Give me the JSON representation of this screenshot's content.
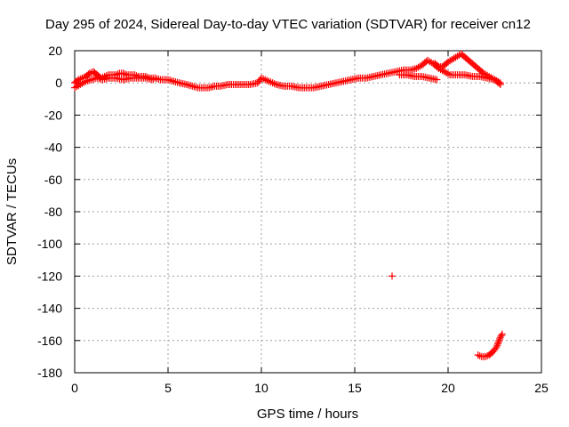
{
  "chart_data": {
    "type": "scatter",
    "title": "Day 295 of 2024, Sidereal Day-to-day VTEC variation (SDTVAR) for receiver cn12",
    "xlabel": "GPS time / hours",
    "ylabel": "SDTVAR / TECUs",
    "xlim": [
      0,
      25
    ],
    "ylim": [
      -180,
      20
    ],
    "xticks": [
      0,
      5,
      10,
      15,
      20,
      25
    ],
    "yticks": [
      20,
      0,
      -20,
      -40,
      -60,
      -80,
      -100,
      -120,
      -140,
      -160,
      -180
    ],
    "grid": true,
    "marker": "plus",
    "color": "#ff0000",
    "series": [
      {
        "name": "main_band",
        "values": [
          [
            0.0,
            0
          ],
          [
            0.2,
            2
          ],
          [
            0.4,
            3
          ],
          [
            0.6,
            4
          ],
          [
            0.8,
            6
          ],
          [
            1.0,
            7
          ],
          [
            1.2,
            5
          ],
          [
            1.4,
            3
          ],
          [
            1.6,
            4
          ],
          [
            1.8,
            5
          ],
          [
            2.0,
            5
          ],
          [
            2.2,
            5
          ],
          [
            2.4,
            6
          ],
          [
            2.6,
            6
          ],
          [
            2.8,
            5
          ],
          [
            3.0,
            5
          ],
          [
            3.2,
            5
          ],
          [
            3.4,
            4
          ],
          [
            3.6,
            4
          ],
          [
            3.8,
            4
          ],
          [
            4.0,
            3
          ],
          [
            4.3,
            3
          ],
          [
            4.6,
            2
          ],
          [
            5.0,
            2
          ],
          [
            5.3,
            1
          ],
          [
            5.6,
            0
          ],
          [
            6.0,
            -1
          ],
          [
            6.3,
            -2
          ],
          [
            6.6,
            -3
          ],
          [
            6.9,
            -3
          ],
          [
            7.2,
            -3
          ],
          [
            7.5,
            -2
          ],
          [
            7.8,
            -2
          ],
          [
            8.2,
            -1
          ],
          [
            8.6,
            -1
          ],
          [
            9.0,
            -1
          ],
          [
            9.4,
            -1
          ],
          [
            9.8,
            0
          ],
          [
            10.0,
            3
          ],
          [
            10.2,
            2
          ],
          [
            10.4,
            1
          ],
          [
            10.8,
            -1
          ],
          [
            11.2,
            -2
          ],
          [
            11.6,
            -2
          ],
          [
            12.0,
            -3
          ],
          [
            12.4,
            -3
          ],
          [
            12.8,
            -3
          ],
          [
            13.2,
            -2
          ],
          [
            13.6,
            -1
          ],
          [
            14.0,
            0
          ],
          [
            14.4,
            1
          ],
          [
            14.8,
            2
          ],
          [
            15.2,
            3
          ],
          [
            15.6,
            3
          ],
          [
            16.0,
            4
          ],
          [
            16.4,
            5
          ],
          [
            16.8,
            6
          ],
          [
            17.2,
            7
          ],
          [
            17.6,
            8
          ],
          [
            18.0,
            8
          ],
          [
            18.3,
            9
          ],
          [
            18.6,
            11
          ],
          [
            18.9,
            14
          ],
          [
            19.2,
            12
          ],
          [
            19.5,
            9
          ],
          [
            19.8,
            7
          ],
          [
            20.1,
            5
          ],
          [
            20.5,
            5
          ],
          [
            20.9,
            5
          ],
          [
            21.3,
            4
          ],
          [
            21.7,
            4
          ],
          [
            22.1,
            3
          ],
          [
            22.5,
            2
          ],
          [
            22.8,
            0
          ]
        ]
      },
      {
        "name": "lower_band",
        "values": [
          [
            0.0,
            -3
          ],
          [
            0.3,
            -1
          ],
          [
            0.6,
            1
          ],
          [
            0.9,
            2
          ],
          [
            1.2,
            3
          ],
          [
            1.5,
            2
          ],
          [
            1.8,
            3
          ],
          [
            2.2,
            3
          ],
          [
            2.6,
            2
          ],
          [
            3.0,
            3
          ],
          [
            3.4,
            3
          ],
          [
            3.8,
            3
          ],
          [
            4.2,
            2
          ],
          [
            17.4,
            5
          ],
          [
            17.8,
            5
          ],
          [
            18.2,
            4
          ],
          [
            18.6,
            4
          ],
          [
            19.0,
            3
          ],
          [
            19.4,
            2
          ]
        ]
      },
      {
        "name": "upper_arc",
        "values": [
          [
            19.3,
            12
          ],
          [
            19.5,
            10
          ],
          [
            19.7,
            10
          ],
          [
            20.0,
            13
          ],
          [
            20.7,
            18
          ],
          [
            21.0,
            15
          ],
          [
            21.3,
            12
          ],
          [
            21.6,
            9
          ],
          [
            21.9,
            6
          ],
          [
            22.2,
            4
          ],
          [
            22.5,
            2
          ],
          [
            22.8,
            -1
          ]
        ]
      },
      {
        "name": "outlier",
        "values": [
          [
            17.0,
            -120
          ]
        ]
      },
      {
        "name": "low_arc",
        "values": [
          [
            21.6,
            -169
          ],
          [
            21.8,
            -170
          ],
          [
            22.0,
            -170
          ],
          [
            22.2,
            -169
          ],
          [
            22.4,
            -167
          ],
          [
            22.6,
            -164
          ],
          [
            22.7,
            -161
          ],
          [
            22.8,
            -158
          ],
          [
            22.9,
            -156
          ]
        ]
      }
    ]
  }
}
